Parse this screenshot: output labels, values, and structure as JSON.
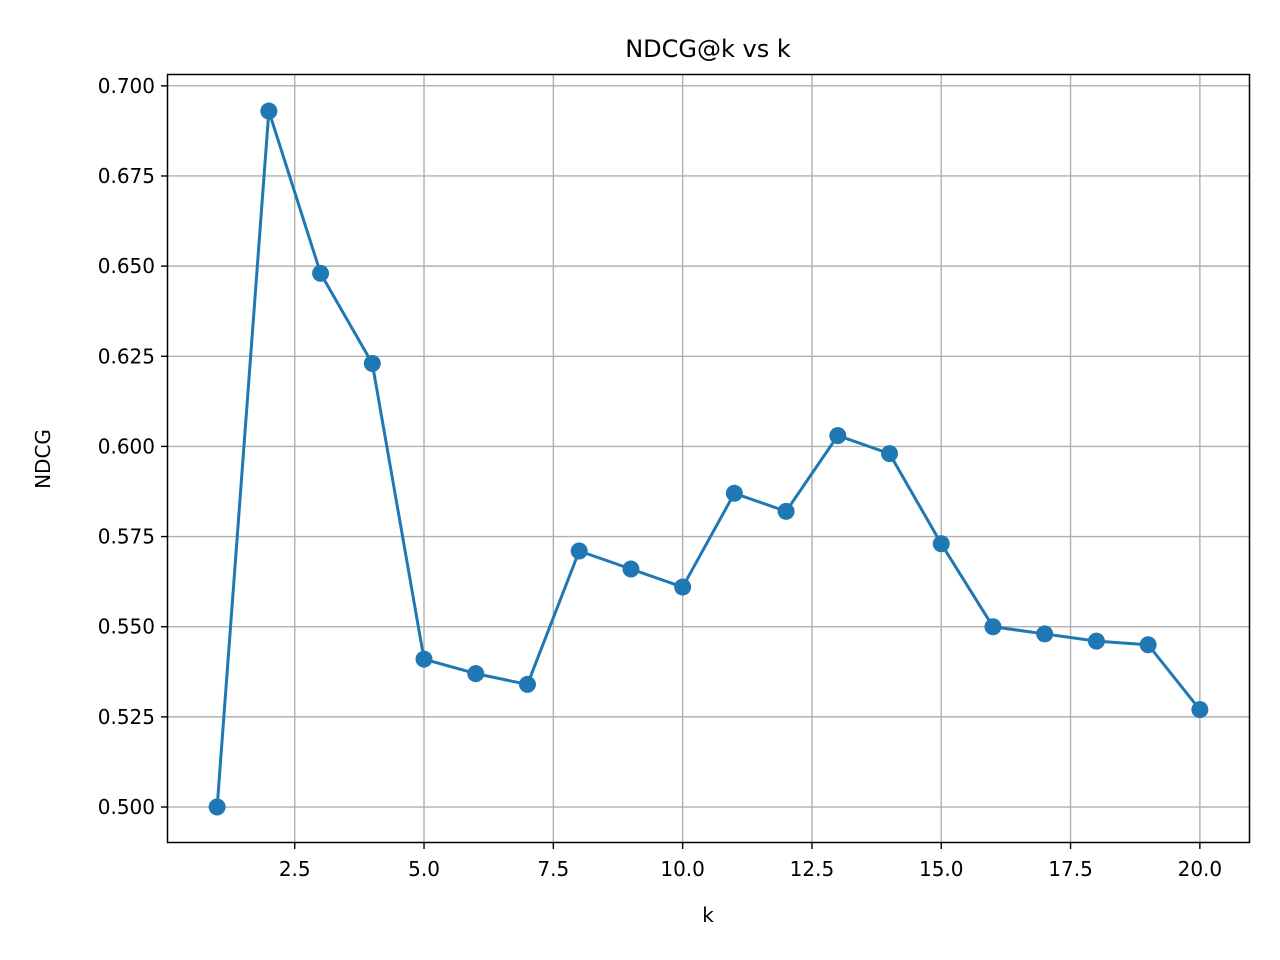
{
  "chart_data": {
    "type": "line",
    "title": "NDCG@k vs k",
    "xlabel": "k",
    "ylabel": "NDCG",
    "grid": true,
    "marker": "circle",
    "color": "#1f77b4",
    "xlim": [
      0.05,
      20.95
    ],
    "ylim": [
      0.4903,
      0.703
    ],
    "xticks": [
      2.5,
      5.0,
      7.5,
      10.0,
      12.5,
      15.0,
      17.5,
      20.0
    ],
    "xtick_labels": [
      "2.5",
      "5.0",
      "7.5",
      "10.0",
      "12.5",
      "15.0",
      "17.5",
      "20.0"
    ],
    "yticks": [
      0.5,
      0.525,
      0.55,
      0.575,
      0.6,
      0.625,
      0.65,
      0.675,
      0.7
    ],
    "ytick_labels": [
      "0.500",
      "0.525",
      "0.550",
      "0.575",
      "0.600",
      "0.625",
      "0.650",
      "0.675",
      "0.700"
    ],
    "series": [
      {
        "x": [
          1,
          2,
          3,
          4,
          5,
          6,
          7,
          8,
          9,
          10,
          11,
          12,
          13,
          14,
          15,
          16,
          17,
          18,
          19,
          20
        ],
        "values": [
          0.5,
          0.693,
          0.648,
          0.623,
          0.541,
          0.537,
          0.534,
          0.571,
          0.566,
          0.561,
          0.587,
          0.582,
          0.603,
          0.598,
          0.573,
          0.55,
          0.548,
          0.546,
          0.545,
          0.527
        ]
      }
    ]
  }
}
